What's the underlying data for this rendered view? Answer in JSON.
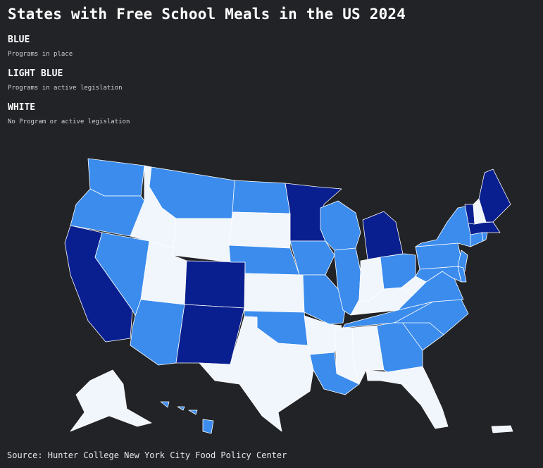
{
  "title": "States with Free School Meals in the US 2024",
  "legend": [
    {
      "name": "BLUE",
      "description": "Programs in place",
      "color": "#0a1f8f"
    },
    {
      "name": "LIGHT BLUE",
      "description": "Programs in active legislation",
      "color": "#3b8ced"
    },
    {
      "name": "WHITE",
      "description": "No Program or active legislation",
      "color": "#f1f5fc"
    }
  ],
  "source": "Source: Hunter College New York City Food Policy Center",
  "colors": {
    "background": "#222327",
    "state_border": "#ffffff"
  },
  "map_data": {
    "programs_in_place": [
      "California",
      "Colorado",
      "New Mexico",
      "Minnesota",
      "Michigan",
      "Maine",
      "Vermont",
      "Massachusetts"
    ],
    "active_legislation": [
      "Washington",
      "Oregon",
      "Nevada",
      "Arizona",
      "Montana",
      "North Dakota",
      "Nebraska",
      "Oklahoma",
      "Iowa",
      "Wisconsin",
      "Illinois",
      "Missouri",
      "Ohio",
      "Pennsylvania",
      "New York",
      "New Jersey",
      "Maryland",
      "Delaware",
      "Connecticut",
      "Rhode Island",
      "Virginia",
      "North Carolina",
      "South Carolina",
      "Tennessee",
      "Louisiana",
      "Hawaii",
      "Georgia"
    ],
    "no_program": [
      "Idaho",
      "Wyoming",
      "Utah",
      "South Dakota",
      "Kansas",
      "Texas",
      "Arkansas",
      "Mississippi",
      "Alabama",
      "Florida",
      "Kentucky",
      "Indiana",
      "West Virginia",
      "New Hampshire",
      "Alaska",
      "Puerto Rico"
    ]
  }
}
